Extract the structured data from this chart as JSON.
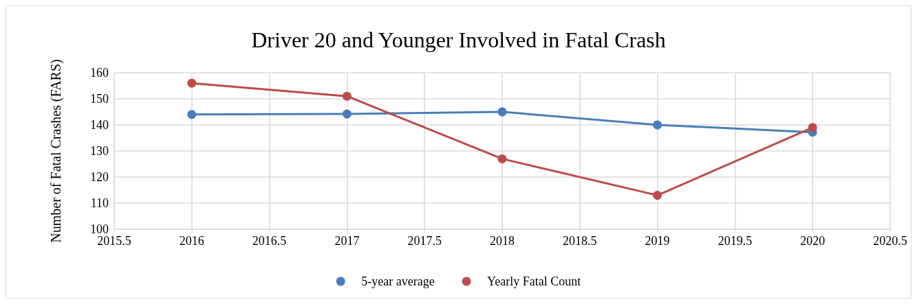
{
  "chart_data": {
    "type": "line",
    "title": "Driver 20 and Younger Involved in Fatal Crash",
    "ylabel": "Number of Fatal Crashes (FARS)",
    "x": [
      2016,
      2017,
      2018,
      2019,
      2020
    ],
    "series": [
      {
        "name": "5-year average",
        "color": "#4a7ebb",
        "values": [
          144,
          144.2,
          145,
          140,
          137.2
        ]
      },
      {
        "name": "Yearly Fatal Count",
        "color": "#be4b48",
        "values": [
          156,
          151,
          127,
          113,
          139
        ]
      }
    ],
    "xlim": [
      2015.5,
      2020.5
    ],
    "xticks": [
      2015.5,
      2016,
      2016.5,
      2017,
      2017.5,
      2018,
      2018.5,
      2019,
      2019.5,
      2020,
      2020.5
    ],
    "ylim": [
      100,
      160
    ],
    "yticks": [
      100,
      110,
      120,
      130,
      140,
      150,
      160
    ],
    "grid": true,
    "legend": "bottom",
    "marker": "circle",
    "line_style": "solid"
  }
}
